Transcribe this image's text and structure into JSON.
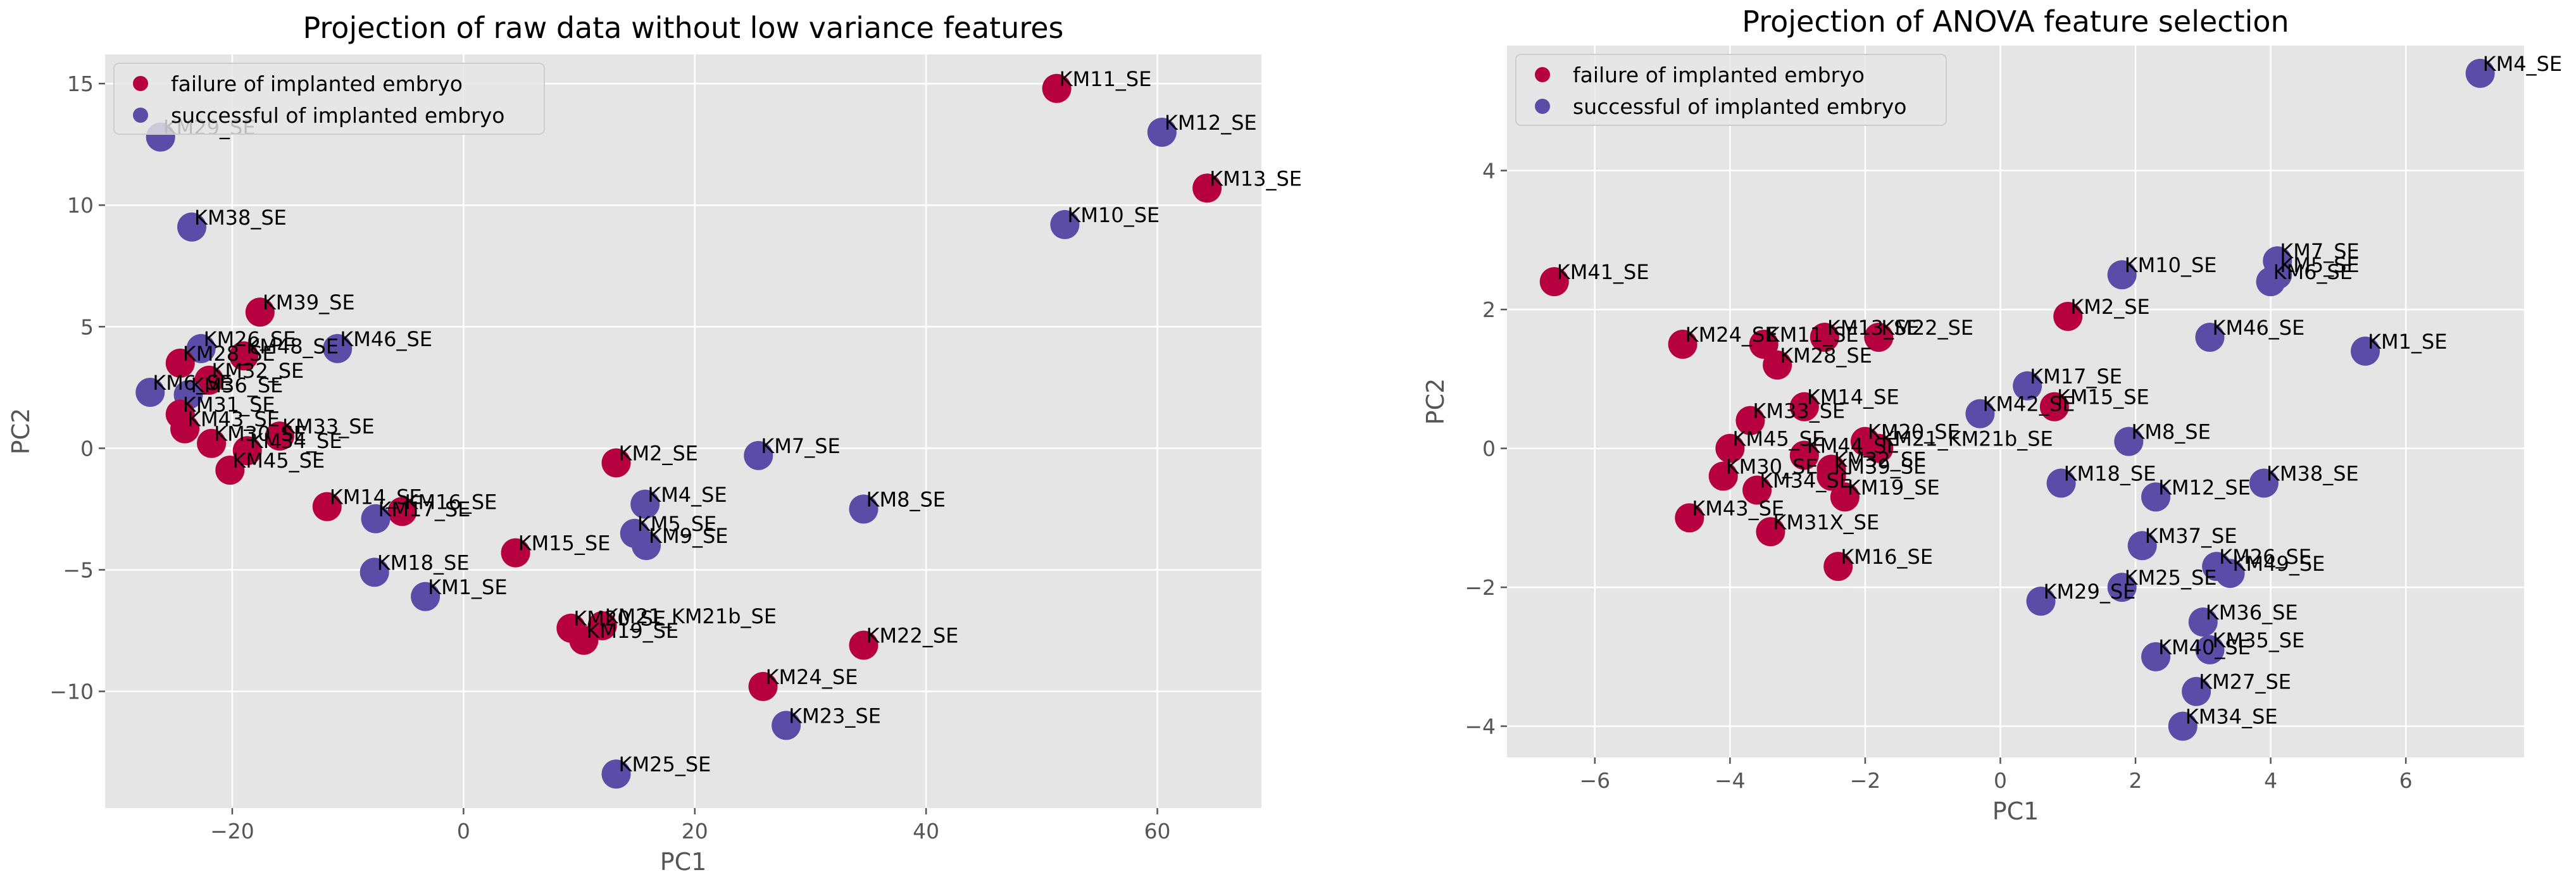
{
  "colors": {
    "failure": "#b70040",
    "success": "#5b4ca8",
    "panel_bg": "#e5e5e5",
    "grid": "#ffffff",
    "tick_text": "#555555",
    "text": "#000000"
  },
  "chart_data": [
    {
      "type": "scatter",
      "title": "Projection of raw data without low variance features",
      "xlabel": "PC1",
      "ylabel": "PC2",
      "xlim": [
        -31,
        69
      ],
      "ylim": [
        -14.8,
        16.2
      ],
      "xticks": [
        -20,
        0,
        20,
        40,
        60
      ],
      "yticks": [
        -10,
        -5,
        0,
        5,
        10,
        15
      ],
      "xtick_labels": [
        "−20",
        "0",
        "20",
        "40",
        "60"
      ],
      "ytick_labels": [
        "−10",
        "−5",
        "0",
        "5",
        "10",
        "15"
      ],
      "grid": true,
      "legend_position": "top-left",
      "legend": [
        {
          "label": "failure of implanted embryo",
          "class": "failure"
        },
        {
          "label": "successful of implanted embryo",
          "class": "success"
        }
      ],
      "points": [
        {
          "x": 51.3,
          "y": 14.8,
          "label": "KM11_SE",
          "class": "failure"
        },
        {
          "x": 60.4,
          "y": 13.0,
          "label": "KM12_SE",
          "class": "success"
        },
        {
          "x": 64.3,
          "y": 10.7,
          "label": "KM13_SE",
          "class": "failure"
        },
        {
          "x": 52.0,
          "y": 9.2,
          "label": "KM10_SE",
          "class": "success"
        },
        {
          "x": -26.2,
          "y": 12.8,
          "label": "KM29_SE",
          "class": "success"
        },
        {
          "x": -23.5,
          "y": 9.1,
          "label": "KM38_SE",
          "class": "success"
        },
        {
          "x": -17.6,
          "y": 5.6,
          "label": "KM39_SE",
          "class": "failure"
        },
        {
          "x": -22.7,
          "y": 4.1,
          "label": "KM26_SE",
          "class": "success"
        },
        {
          "x": -10.9,
          "y": 4.1,
          "label": "KM46_SE",
          "class": "success"
        },
        {
          "x": -19.0,
          "y": 3.8,
          "label": "KM48_SE",
          "class": "failure"
        },
        {
          "x": -24.5,
          "y": 3.5,
          "label": "KM28_SE",
          "class": "failure"
        },
        {
          "x": -22.0,
          "y": 2.8,
          "label": "KM32_SE",
          "class": "failure"
        },
        {
          "x": -27.1,
          "y": 2.3,
          "label": "KM6_SE",
          "class": "success"
        },
        {
          "x": -23.8,
          "y": 2.2,
          "label": "KM36_SE",
          "class": "success"
        },
        {
          "x": -24.5,
          "y": 1.4,
          "label": "KM31_SE",
          "class": "failure"
        },
        {
          "x": -24.1,
          "y": 0.8,
          "label": "KM43_SE",
          "class": "failure"
        },
        {
          "x": -21.8,
          "y": 0.2,
          "label": "KM30_SE",
          "class": "failure"
        },
        {
          "x": -15.9,
          "y": 0.5,
          "label": "KM33_SE",
          "class": "failure"
        },
        {
          "x": -18.7,
          "y": -0.1,
          "label": "KM34_SE",
          "class": "failure"
        },
        {
          "x": -20.2,
          "y": -0.9,
          "label": "KM45_SE",
          "class": "failure"
        },
        {
          "x": 13.2,
          "y": -0.6,
          "label": "KM2_SE",
          "class": "failure"
        },
        {
          "x": 25.5,
          "y": -0.3,
          "label": "KM7_SE",
          "class": "success"
        },
        {
          "x": -11.8,
          "y": -2.4,
          "label": "KM14_SE",
          "class": "failure"
        },
        {
          "x": -5.3,
          "y": -2.6,
          "label": "KM16_SE",
          "class": "failure"
        },
        {
          "x": -7.6,
          "y": -2.9,
          "label": "KM17_SE",
          "class": "success"
        },
        {
          "x": 15.7,
          "y": -2.3,
          "label": "KM4_SE",
          "class": "success"
        },
        {
          "x": 34.6,
          "y": -2.5,
          "label": "KM8_SE",
          "class": "success"
        },
        {
          "x": 14.8,
          "y": -3.5,
          "label": "KM5_SE",
          "class": "success"
        },
        {
          "x": 15.8,
          "y": -4.0,
          "label": "KM9_SE",
          "class": "success"
        },
        {
          "x": 4.5,
          "y": -4.3,
          "label": "KM15_SE",
          "class": "failure"
        },
        {
          "x": -7.7,
          "y": -5.1,
          "label": "KM18_SE",
          "class": "success"
        },
        {
          "x": -3.3,
          "y": -6.1,
          "label": "KM1_SE",
          "class": "success"
        },
        {
          "x": 9.3,
          "y": -7.4,
          "label": "KM20_SE",
          "class": "failure"
        },
        {
          "x": 12.0,
          "y": -7.3,
          "label": "KM21_KM21b_SE",
          "class": "failure"
        },
        {
          "x": 10.4,
          "y": -7.9,
          "label": "KM19_SE",
          "class": "failure"
        },
        {
          "x": 34.6,
          "y": -8.1,
          "label": "KM22_SE",
          "class": "failure"
        },
        {
          "x": 25.9,
          "y": -9.8,
          "label": "KM24_SE",
          "class": "failure"
        },
        {
          "x": 27.9,
          "y": -11.4,
          "label": "KM23_SE",
          "class": "success"
        },
        {
          "x": 13.2,
          "y": -13.4,
          "label": "KM25_SE",
          "class": "success"
        }
      ]
    },
    {
      "type": "scatter",
      "title": "Projection of ANOVA feature selection",
      "xlabel": "PC1",
      "ylabel": "PC2",
      "xlim": [
        -7.3,
        7.75
      ],
      "ylim": [
        -4.45,
        5.8
      ],
      "xticks": [
        -6,
        -4,
        -2,
        0,
        2,
        4,
        6
      ],
      "yticks": [
        -4,
        -2,
        0,
        2,
        4
      ],
      "xtick_labels": [
        "−6",
        "−4",
        "−2",
        "0",
        "2",
        "4",
        "6"
      ],
      "ytick_labels": [
        "−4",
        "−2",
        "0",
        "2",
        "4"
      ],
      "grid": true,
      "legend_position": "top-left",
      "legend": [
        {
          "label": "failure of implanted embryo",
          "class": "failure"
        },
        {
          "label": "successful of implanted embryo",
          "class": "success"
        }
      ],
      "points": [
        {
          "x": 7.1,
          "y": 5.4,
          "label": "KM4_SE",
          "class": "success"
        },
        {
          "x": -6.6,
          "y": 2.4,
          "label": "KM41_SE",
          "class": "failure"
        },
        {
          "x": 1.8,
          "y": 2.5,
          "label": "KM10_SE",
          "class": "success"
        },
        {
          "x": 4.1,
          "y": 2.7,
          "label": "KM7_SE",
          "class": "success"
        },
        {
          "x": 4.1,
          "y": 2.5,
          "label": "KM5_SE",
          "class": "success"
        },
        {
          "x": 4.0,
          "y": 2.4,
          "label": "KM6_SE",
          "class": "success"
        },
        {
          "x": 1.0,
          "y": 1.9,
          "label": "KM2_SE",
          "class": "failure"
        },
        {
          "x": 5.4,
          "y": 1.4,
          "label": "KM1_SE",
          "class": "success"
        },
        {
          "x": 3.1,
          "y": 1.6,
          "label": "KM46_SE",
          "class": "success"
        },
        {
          "x": -4.7,
          "y": 1.5,
          "label": "KM24_SE",
          "class": "failure"
        },
        {
          "x": -3.5,
          "y": 1.5,
          "label": "KM11_SE",
          "class": "failure"
        },
        {
          "x": -2.6,
          "y": 1.6,
          "label": "KM13_SE",
          "class": "failure"
        },
        {
          "x": -1.8,
          "y": 1.6,
          "label": "KM22_SE",
          "class": "failure"
        },
        {
          "x": -3.3,
          "y": 1.2,
          "label": "KM28_SE",
          "class": "failure"
        },
        {
          "x": 0.4,
          "y": 0.9,
          "label": "KM17_SE",
          "class": "success"
        },
        {
          "x": -2.9,
          "y": 0.6,
          "label": "KM14_SE",
          "class": "failure"
        },
        {
          "x": -0.3,
          "y": 0.5,
          "label": "KM42_SE",
          "class": "success"
        },
        {
          "x": 0.8,
          "y": 0.6,
          "label": "KM15_SE",
          "class": "failure"
        },
        {
          "x": -3.7,
          "y": 0.4,
          "label": "KM33_SE",
          "class": "failure"
        },
        {
          "x": -2.0,
          "y": 0.1,
          "label": "KM20_SE",
          "class": "failure"
        },
        {
          "x": -1.8,
          "y": 0.0,
          "label": "KM21_KM21b_SE",
          "class": "failure"
        },
        {
          "x": 1.9,
          "y": 0.1,
          "label": "KM8_SE",
          "class": "success"
        },
        {
          "x": -4.0,
          "y": 0.0,
          "label": "KM45_SE",
          "class": "failure"
        },
        {
          "x": -2.9,
          "y": -0.1,
          "label": "KM44_SE",
          "class": "failure"
        },
        {
          "x": -2.5,
          "y": -0.3,
          "label": "KM32_SE",
          "class": "failure"
        },
        {
          "x": -2.5,
          "y": -0.4,
          "label": "KM39_SE",
          "class": "failure"
        },
        {
          "x": -4.1,
          "y": -0.4,
          "label": "KM30_SE",
          "class": "failure"
        },
        {
          "x": -3.6,
          "y": -0.6,
          "label": "KM34_SE",
          "class": "failure"
        },
        {
          "x": -2.3,
          "y": -0.7,
          "label": "KM19_SE",
          "class": "failure"
        },
        {
          "x": 0.9,
          "y": -0.5,
          "label": "KM18_SE",
          "class": "success"
        },
        {
          "x": 2.3,
          "y": -0.7,
          "label": "KM12_SE",
          "class": "success"
        },
        {
          "x": 3.9,
          "y": -0.5,
          "label": "KM38_SE",
          "class": "success"
        },
        {
          "x": -4.6,
          "y": -1.0,
          "label": "KM43_SE",
          "class": "failure"
        },
        {
          "x": -3.4,
          "y": -1.2,
          "label": "KM31X_SE",
          "class": "failure"
        },
        {
          "x": 2.1,
          "y": -1.4,
          "label": "KM37_SE",
          "class": "success"
        },
        {
          "x": -2.4,
          "y": -1.7,
          "label": "KM16_SE",
          "class": "failure"
        },
        {
          "x": 3.2,
          "y": -1.7,
          "label": "KM26_SE",
          "class": "success"
        },
        {
          "x": 3.4,
          "y": -1.8,
          "label": "KM49_SE",
          "class": "success"
        },
        {
          "x": 1.8,
          "y": -2.0,
          "label": "KM25_SE",
          "class": "success"
        },
        {
          "x": 0.6,
          "y": -2.2,
          "label": "KM29_SE",
          "class": "success"
        },
        {
          "x": 3.0,
          "y": -2.5,
          "label": "KM36_SE",
          "class": "success"
        },
        {
          "x": 2.3,
          "y": -3.0,
          "label": "KM40_SE",
          "class": "success"
        },
        {
          "x": 3.1,
          "y": -2.9,
          "label": "KM35_SE",
          "class": "success"
        },
        {
          "x": 2.9,
          "y": -3.5,
          "label": "KM27_SE",
          "class": "success"
        },
        {
          "x": 2.7,
          "y": -4.0,
          "label": "KM34_SE",
          "class": "success"
        }
      ]
    }
  ]
}
